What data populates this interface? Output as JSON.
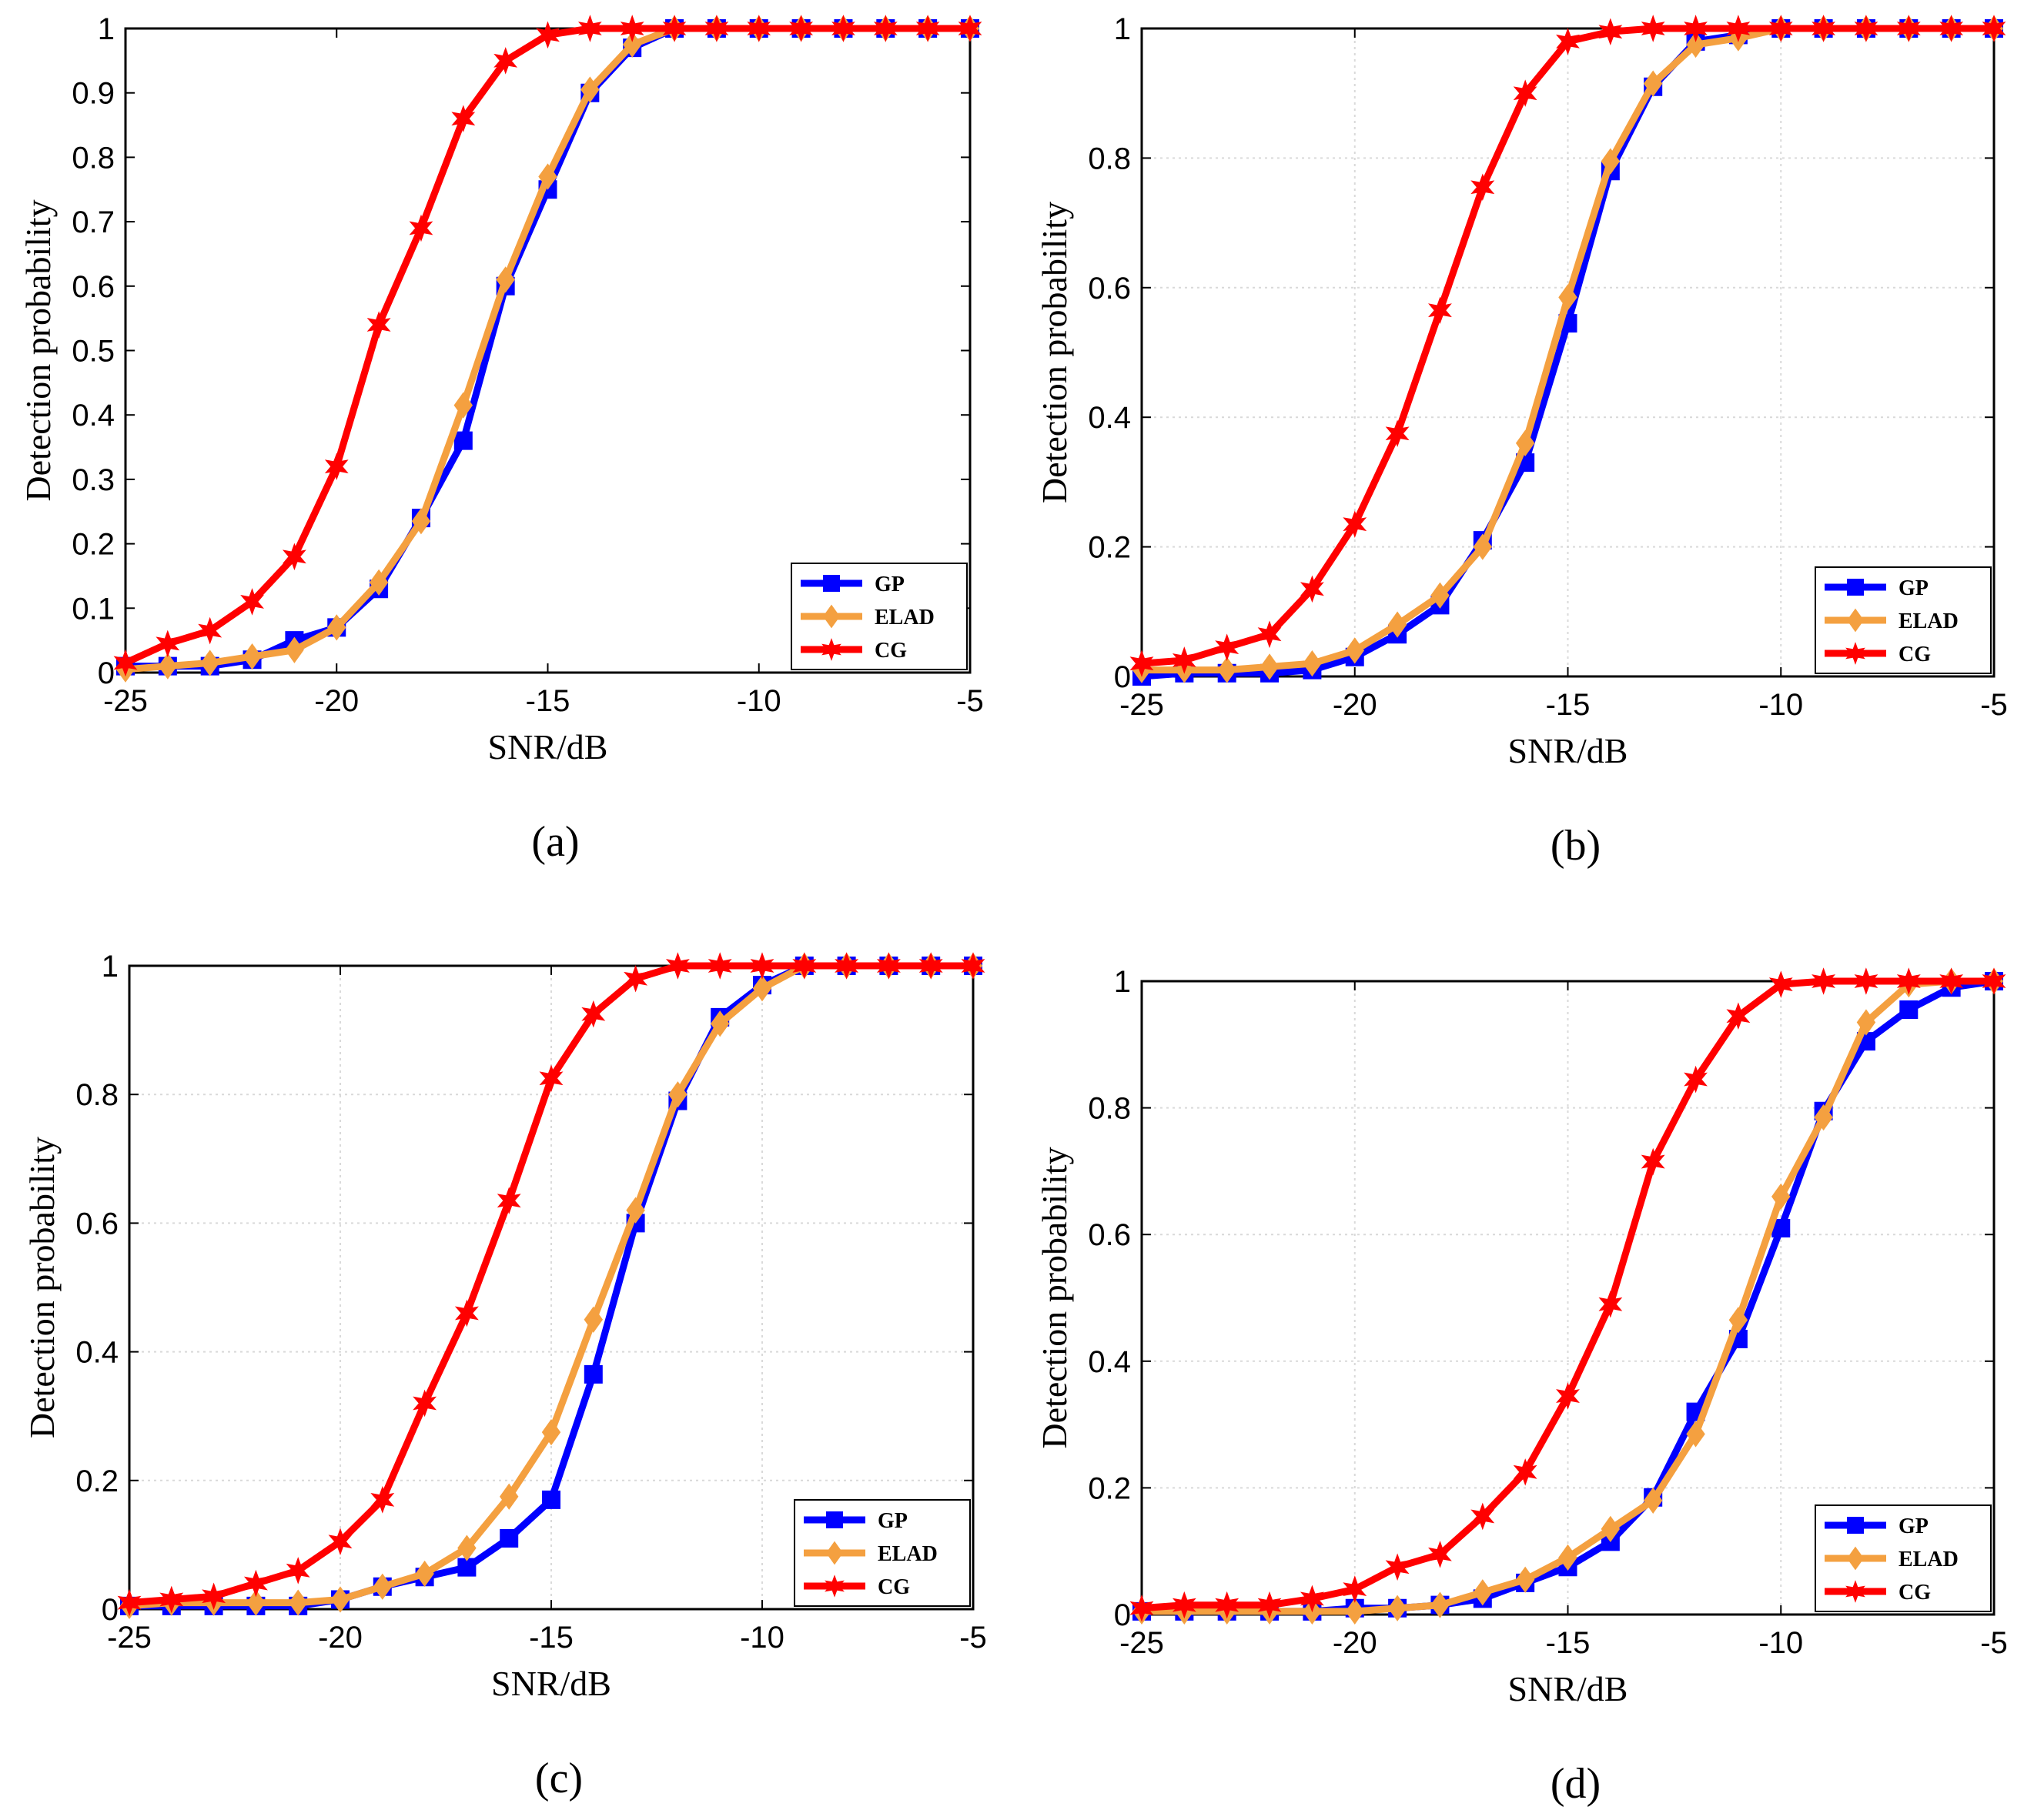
{
  "chart_data": [
    {
      "type": "line",
      "caption": "(a)",
      "xlabel": "SNR/dB",
      "ylabel": "Detection probability",
      "x": [
        -25,
        -24,
        -23,
        -22,
        -21,
        -20,
        -19,
        -18,
        -17,
        -16,
        -15,
        -14,
        -13,
        -12,
        -11,
        -10,
        -9,
        -8,
        -7,
        -6,
        -5
      ],
      "series": [
        {
          "name": "GP",
          "color": "#0000ff",
          "marker": "square",
          "values": [
            0.01,
            0.01,
            0.01,
            0.02,
            0.05,
            0.07,
            0.13,
            0.24,
            0.36,
            0.6,
            0.75,
            0.9,
            0.97,
            1,
            1,
            1,
            1,
            1,
            1,
            1,
            1
          ]
        },
        {
          "name": "ELAD",
          "color": "#f4a040",
          "marker": "diamond",
          "values": [
            0.005,
            0.01,
            0.015,
            0.025,
            0.035,
            0.07,
            0.14,
            0.235,
            0.415,
            0.61,
            0.77,
            0.905,
            0.975,
            1,
            1,
            1,
            1,
            1,
            1,
            1,
            1
          ]
        },
        {
          "name": "CG",
          "color": "#ff0000",
          "marker": "star",
          "values": [
            0.015,
            0.045,
            0.065,
            0.11,
            0.18,
            0.32,
            0.54,
            0.69,
            0.86,
            0.95,
            0.99,
            1,
            1,
            1,
            1,
            1,
            1,
            1,
            1,
            1,
            1
          ]
        }
      ],
      "xlim": [
        -25,
        -5
      ],
      "xticks": [
        -25,
        -20,
        -15,
        -10,
        -5
      ],
      "ylim": [
        0,
        1
      ],
      "yticks": [
        0,
        0.1,
        0.2,
        0.3,
        0.4,
        0.5,
        0.6,
        0.7,
        0.8,
        0.9,
        1
      ],
      "grid": false,
      "legend": "lower right"
    },
    {
      "type": "line",
      "caption": "(b)",
      "xlabel": "SNR/dB",
      "ylabel": "Detection probability",
      "x": [
        -25,
        -24,
        -23,
        -22,
        -21,
        -20,
        -19,
        -18,
        -17,
        -16,
        -15,
        -14,
        -13,
        -12,
        -11,
        -10,
        -9,
        -8,
        -7,
        -6,
        -5
      ],
      "series": [
        {
          "name": "GP",
          "color": "#0000ff",
          "marker": "square",
          "values": [
            0,
            0.005,
            0.005,
            0.005,
            0.01,
            0.03,
            0.065,
            0.11,
            0.21,
            0.33,
            0.545,
            0.78,
            0.91,
            0.98,
            0.99,
            1,
            1,
            1,
            1,
            1,
            1
          ]
        },
        {
          "name": "ELAD",
          "color": "#f4a040",
          "marker": "diamond",
          "values": [
            0.01,
            0.01,
            0.01,
            0.015,
            0.02,
            0.04,
            0.08,
            0.125,
            0.2,
            0.36,
            0.585,
            0.795,
            0.915,
            0.975,
            0.985,
            1,
            1,
            1,
            1,
            1,
            1
          ]
        },
        {
          "name": "CG",
          "color": "#ff0000",
          "marker": "star",
          "values": [
            0.02,
            0.025,
            0.045,
            0.065,
            0.135,
            0.235,
            0.375,
            0.565,
            0.755,
            0.9,
            0.98,
            0.995,
            1,
            1,
            1,
            1,
            1,
            1,
            1,
            1,
            1
          ]
        }
      ],
      "xlim": [
        -25,
        -5
      ],
      "xticks": [
        -25,
        -20,
        -15,
        -10,
        -5
      ],
      "ylim": [
        0,
        1
      ],
      "yticks": [
        0,
        0.2,
        0.4,
        0.6,
        0.8,
        1
      ],
      "grid": true,
      "legend": "lower right"
    },
    {
      "type": "line",
      "caption": "(c)",
      "xlabel": "SNR/dB",
      "ylabel": "Detection probability",
      "x": [
        -25,
        -24,
        -23,
        -22,
        -21,
        -20,
        -19,
        -18,
        -17,
        -16,
        -15,
        -14,
        -13,
        -12,
        -11,
        -10,
        -9,
        -8,
        -7,
        -6,
        -5
      ],
      "series": [
        {
          "name": "GP",
          "color": "#0000ff",
          "marker": "square",
          "values": [
            0.005,
            0.005,
            0.005,
            0.005,
            0.005,
            0.015,
            0.035,
            0.05,
            0.065,
            0.11,
            0.17,
            0.365,
            0.6,
            0.79,
            0.92,
            0.97,
            1,
            1,
            1,
            1,
            1
          ]
        },
        {
          "name": "ELAD",
          "color": "#f4a040",
          "marker": "diamond",
          "values": [
            0.005,
            0.01,
            0.01,
            0.01,
            0.01,
            0.015,
            0.035,
            0.055,
            0.095,
            0.175,
            0.275,
            0.45,
            0.62,
            0.8,
            0.91,
            0.965,
            1,
            1,
            1,
            1,
            1
          ]
        },
        {
          "name": "CG",
          "color": "#ff0000",
          "marker": "star",
          "values": [
            0.01,
            0.015,
            0.02,
            0.04,
            0.06,
            0.105,
            0.17,
            0.32,
            0.46,
            0.635,
            0.825,
            0.925,
            0.98,
            1,
            1,
            1,
            1,
            1,
            1,
            1,
            1
          ]
        }
      ],
      "xlim": [
        -25,
        -5
      ],
      "xticks": [
        -25,
        -20,
        -15,
        -10,
        -5
      ],
      "ylim": [
        0,
        1
      ],
      "yticks": [
        0,
        0.2,
        0.4,
        0.6,
        0.8,
        1
      ],
      "grid": true,
      "legend": "lower right"
    },
    {
      "type": "line",
      "caption": "(d)",
      "xlabel": "SNR/dB",
      "ylabel": "Detection probability",
      "x": [
        -25,
        -24,
        -23,
        -22,
        -21,
        -20,
        -19,
        -18,
        -17,
        -16,
        -15,
        -14,
        -13,
        -12,
        -11,
        -10,
        -9,
        -8,
        -7,
        -6,
        -5
      ],
      "series": [
        {
          "name": "GP",
          "color": "#0000ff",
          "marker": "square",
          "values": [
            0.005,
            0.005,
            0.005,
            0.005,
            0.005,
            0.01,
            0.01,
            0.015,
            0.025,
            0.05,
            0.075,
            0.115,
            0.185,
            0.32,
            0.435,
            0.61,
            0.795,
            0.905,
            0.955,
            0.99,
            1
          ]
        },
        {
          "name": "ELAD",
          "color": "#f4a040",
          "marker": "diamond",
          "values": [
            0.005,
            0.005,
            0.005,
            0.005,
            0.005,
            0.005,
            0.01,
            0.015,
            0.035,
            0.055,
            0.09,
            0.135,
            0.18,
            0.285,
            0.465,
            0.66,
            0.785,
            0.935,
            0.995,
            1,
            1
          ]
        },
        {
          "name": "CG",
          "color": "#ff0000",
          "marker": "star",
          "values": [
            0.01,
            0.015,
            0.015,
            0.015,
            0.025,
            0.04,
            0.075,
            0.095,
            0.155,
            0.225,
            0.345,
            0.49,
            0.715,
            0.845,
            0.945,
            0.995,
            1,
            1,
            1,
            1,
            1
          ]
        }
      ],
      "xlim": [
        -25,
        -5
      ],
      "xticks": [
        -25,
        -20,
        -15,
        -10,
        -5
      ],
      "ylim": [
        0,
        1
      ],
      "yticks": [
        0,
        0.2,
        0.4,
        0.6,
        0.8,
        1
      ],
      "grid": true,
      "legend": "lower right"
    }
  ]
}
